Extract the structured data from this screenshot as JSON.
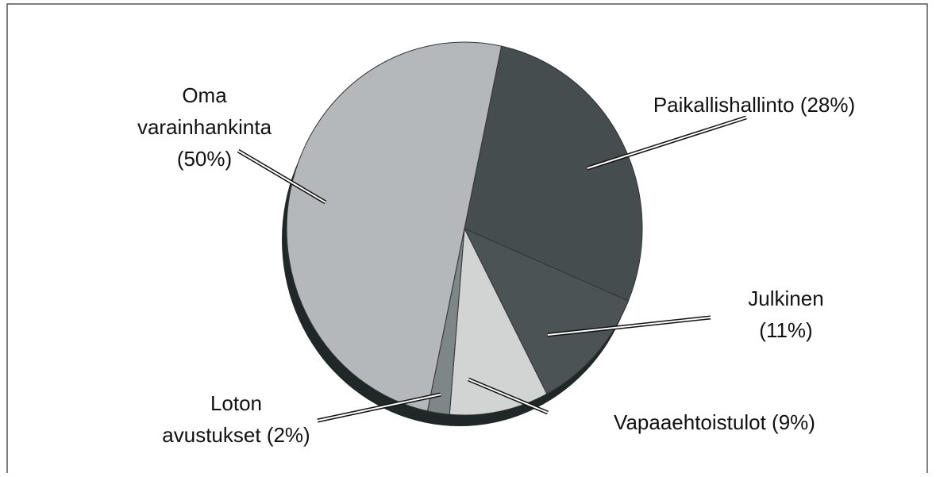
{
  "chart_data": {
    "type": "pie",
    "categories": [
      "Paikallishallinto",
      "Julkinen",
      "Vapaaehtoistulot",
      "Loton avustukset",
      "Oma varainhankinta"
    ],
    "values": [
      28,
      11,
      9,
      2,
      50
    ],
    "value_labels": [
      "(28%)",
      "(11%)",
      "(9%)",
      "(2%)",
      "(50%)"
    ],
    "colors": [
      "#454d4f",
      "#4b5355",
      "#d2d4d4",
      "#7e8688",
      "#b5b8ba"
    ]
  }
}
